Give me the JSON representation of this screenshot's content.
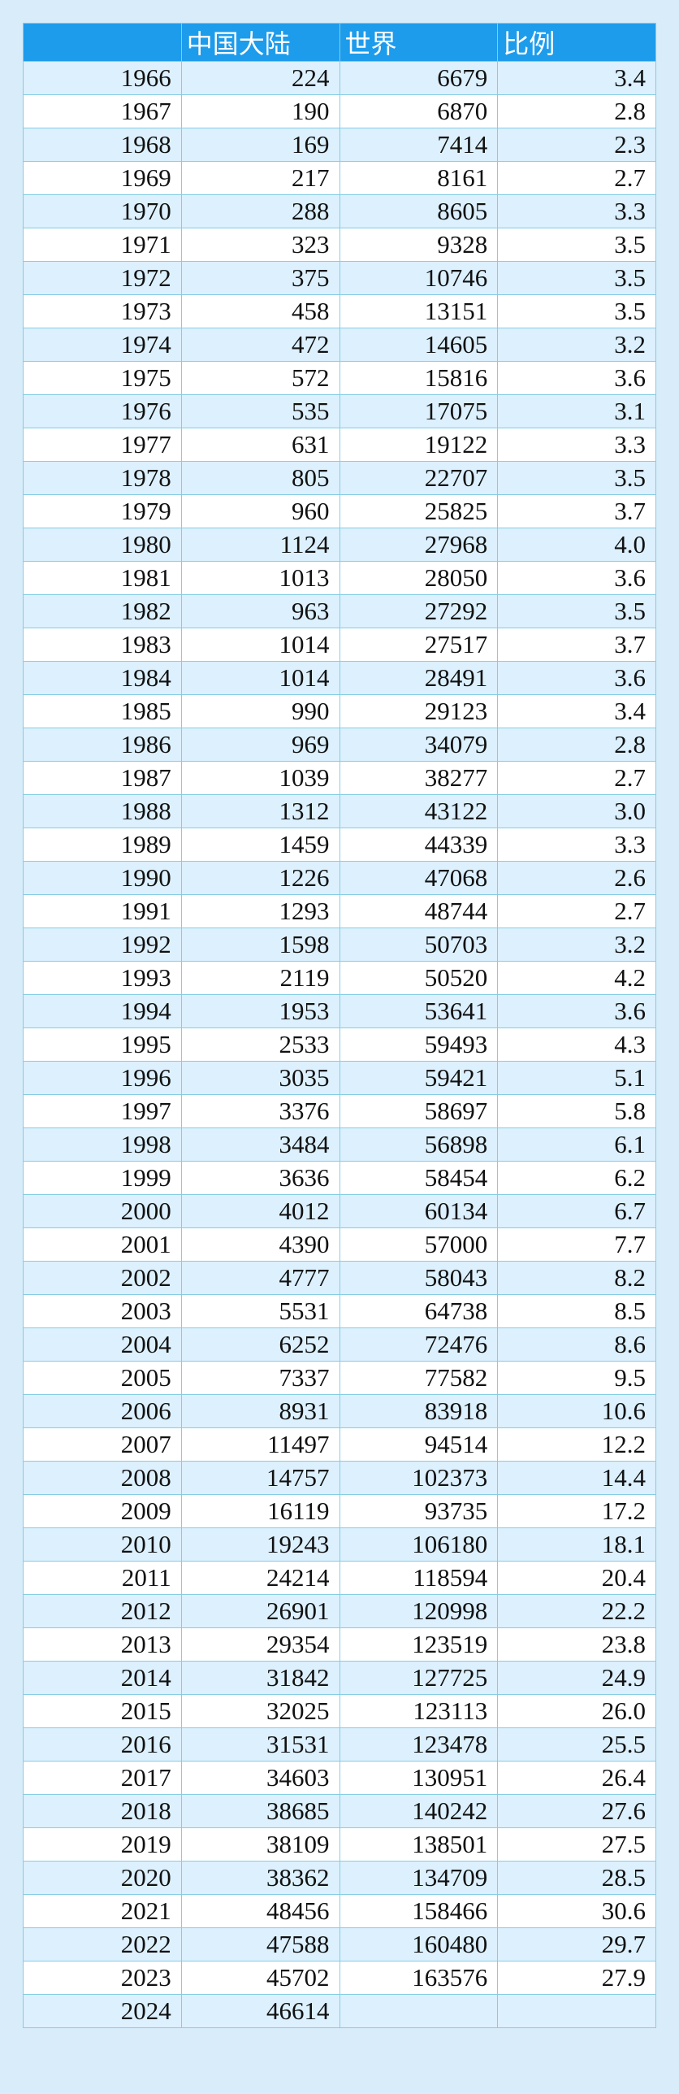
{
  "table": {
    "header": [
      "中国大陆",
      "世界",
      "比例"
    ],
    "rows": [
      [
        "1966",
        "224",
        "6679",
        "3.4"
      ],
      [
        "1967",
        "190",
        "6870",
        "2.8"
      ],
      [
        "1968",
        "169",
        "7414",
        "2.3"
      ],
      [
        "1969",
        "217",
        "8161",
        "2.7"
      ],
      [
        "1970",
        "288",
        "8605",
        "3.3"
      ],
      [
        "1971",
        "323",
        "9328",
        "3.5"
      ],
      [
        "1972",
        "375",
        "10746",
        "3.5"
      ],
      [
        "1973",
        "458",
        "13151",
        "3.5"
      ],
      [
        "1974",
        "472",
        "14605",
        "3.2"
      ],
      [
        "1975",
        "572",
        "15816",
        "3.6"
      ],
      [
        "1976",
        "535",
        "17075",
        "3.1"
      ],
      [
        "1977",
        "631",
        "19122",
        "3.3"
      ],
      [
        "1978",
        "805",
        "22707",
        "3.5"
      ],
      [
        "1979",
        "960",
        "25825",
        "3.7"
      ],
      [
        "1980",
        "1124",
        "27968",
        "4.0"
      ],
      [
        "1981",
        "1013",
        "28050",
        "3.6"
      ],
      [
        "1982",
        "963",
        "27292",
        "3.5"
      ],
      [
        "1983",
        "1014",
        "27517",
        "3.7"
      ],
      [
        "1984",
        "1014",
        "28491",
        "3.6"
      ],
      [
        "1985",
        "990",
        "29123",
        "3.4"
      ],
      [
        "1986",
        "969",
        "34079",
        "2.8"
      ],
      [
        "1987",
        "1039",
        "38277",
        "2.7"
      ],
      [
        "1988",
        "1312",
        "43122",
        "3.0"
      ],
      [
        "1989",
        "1459",
        "44339",
        "3.3"
      ],
      [
        "1990",
        "1226",
        "47068",
        "2.6"
      ],
      [
        "1991",
        "1293",
        "48744",
        "2.7"
      ],
      [
        "1992",
        "1598",
        "50703",
        "3.2"
      ],
      [
        "1993",
        "2119",
        "50520",
        "4.2"
      ],
      [
        "1994",
        "1953",
        "53641",
        "3.6"
      ],
      [
        "1995",
        "2533",
        "59493",
        "4.3"
      ],
      [
        "1996",
        "3035",
        "59421",
        "5.1"
      ],
      [
        "1997",
        "3376",
        "58697",
        "5.8"
      ],
      [
        "1998",
        "3484",
        "56898",
        "6.1"
      ],
      [
        "1999",
        "3636",
        "58454",
        "6.2"
      ],
      [
        "2000",
        "4012",
        "60134",
        "6.7"
      ],
      [
        "2001",
        "4390",
        "57000",
        "7.7"
      ],
      [
        "2002",
        "4777",
        "58043",
        "8.2"
      ],
      [
        "2003",
        "5531",
        "64738",
        "8.5"
      ],
      [
        "2004",
        "6252",
        "72476",
        "8.6"
      ],
      [
        "2005",
        "7337",
        "77582",
        "9.5"
      ],
      [
        "2006",
        "8931",
        "83918",
        "10.6"
      ],
      [
        "2007",
        "11497",
        "94514",
        "12.2"
      ],
      [
        "2008",
        "14757",
        "102373",
        "14.4"
      ],
      [
        "2009",
        "16119",
        "93735",
        "17.2"
      ],
      [
        "2010",
        "19243",
        "106180",
        "18.1"
      ],
      [
        "2011",
        "24214",
        "118594",
        "20.4"
      ],
      [
        "2012",
        "26901",
        "120998",
        "22.2"
      ],
      [
        "2013",
        "29354",
        "123519",
        "23.8"
      ],
      [
        "2014",
        "31842",
        "127725",
        "24.9"
      ],
      [
        "2015",
        "32025",
        "123113",
        "26.0"
      ],
      [
        "2016",
        "31531",
        "123478",
        "25.5"
      ],
      [
        "2017",
        "34603",
        "130951",
        "26.4"
      ],
      [
        "2018",
        "38685",
        "140242",
        "27.6"
      ],
      [
        "2019",
        "38109",
        "138501",
        "27.5"
      ],
      [
        "2020",
        "38362",
        "134709",
        "28.5"
      ],
      [
        "2021",
        "48456",
        "158466",
        "30.6"
      ],
      [
        "2022",
        "47588",
        "160480",
        "29.7"
      ],
      [
        "2023",
        "45702",
        "163576",
        "27.9"
      ],
      [
        "2024",
        "46614"
      ]
    ]
  }
}
